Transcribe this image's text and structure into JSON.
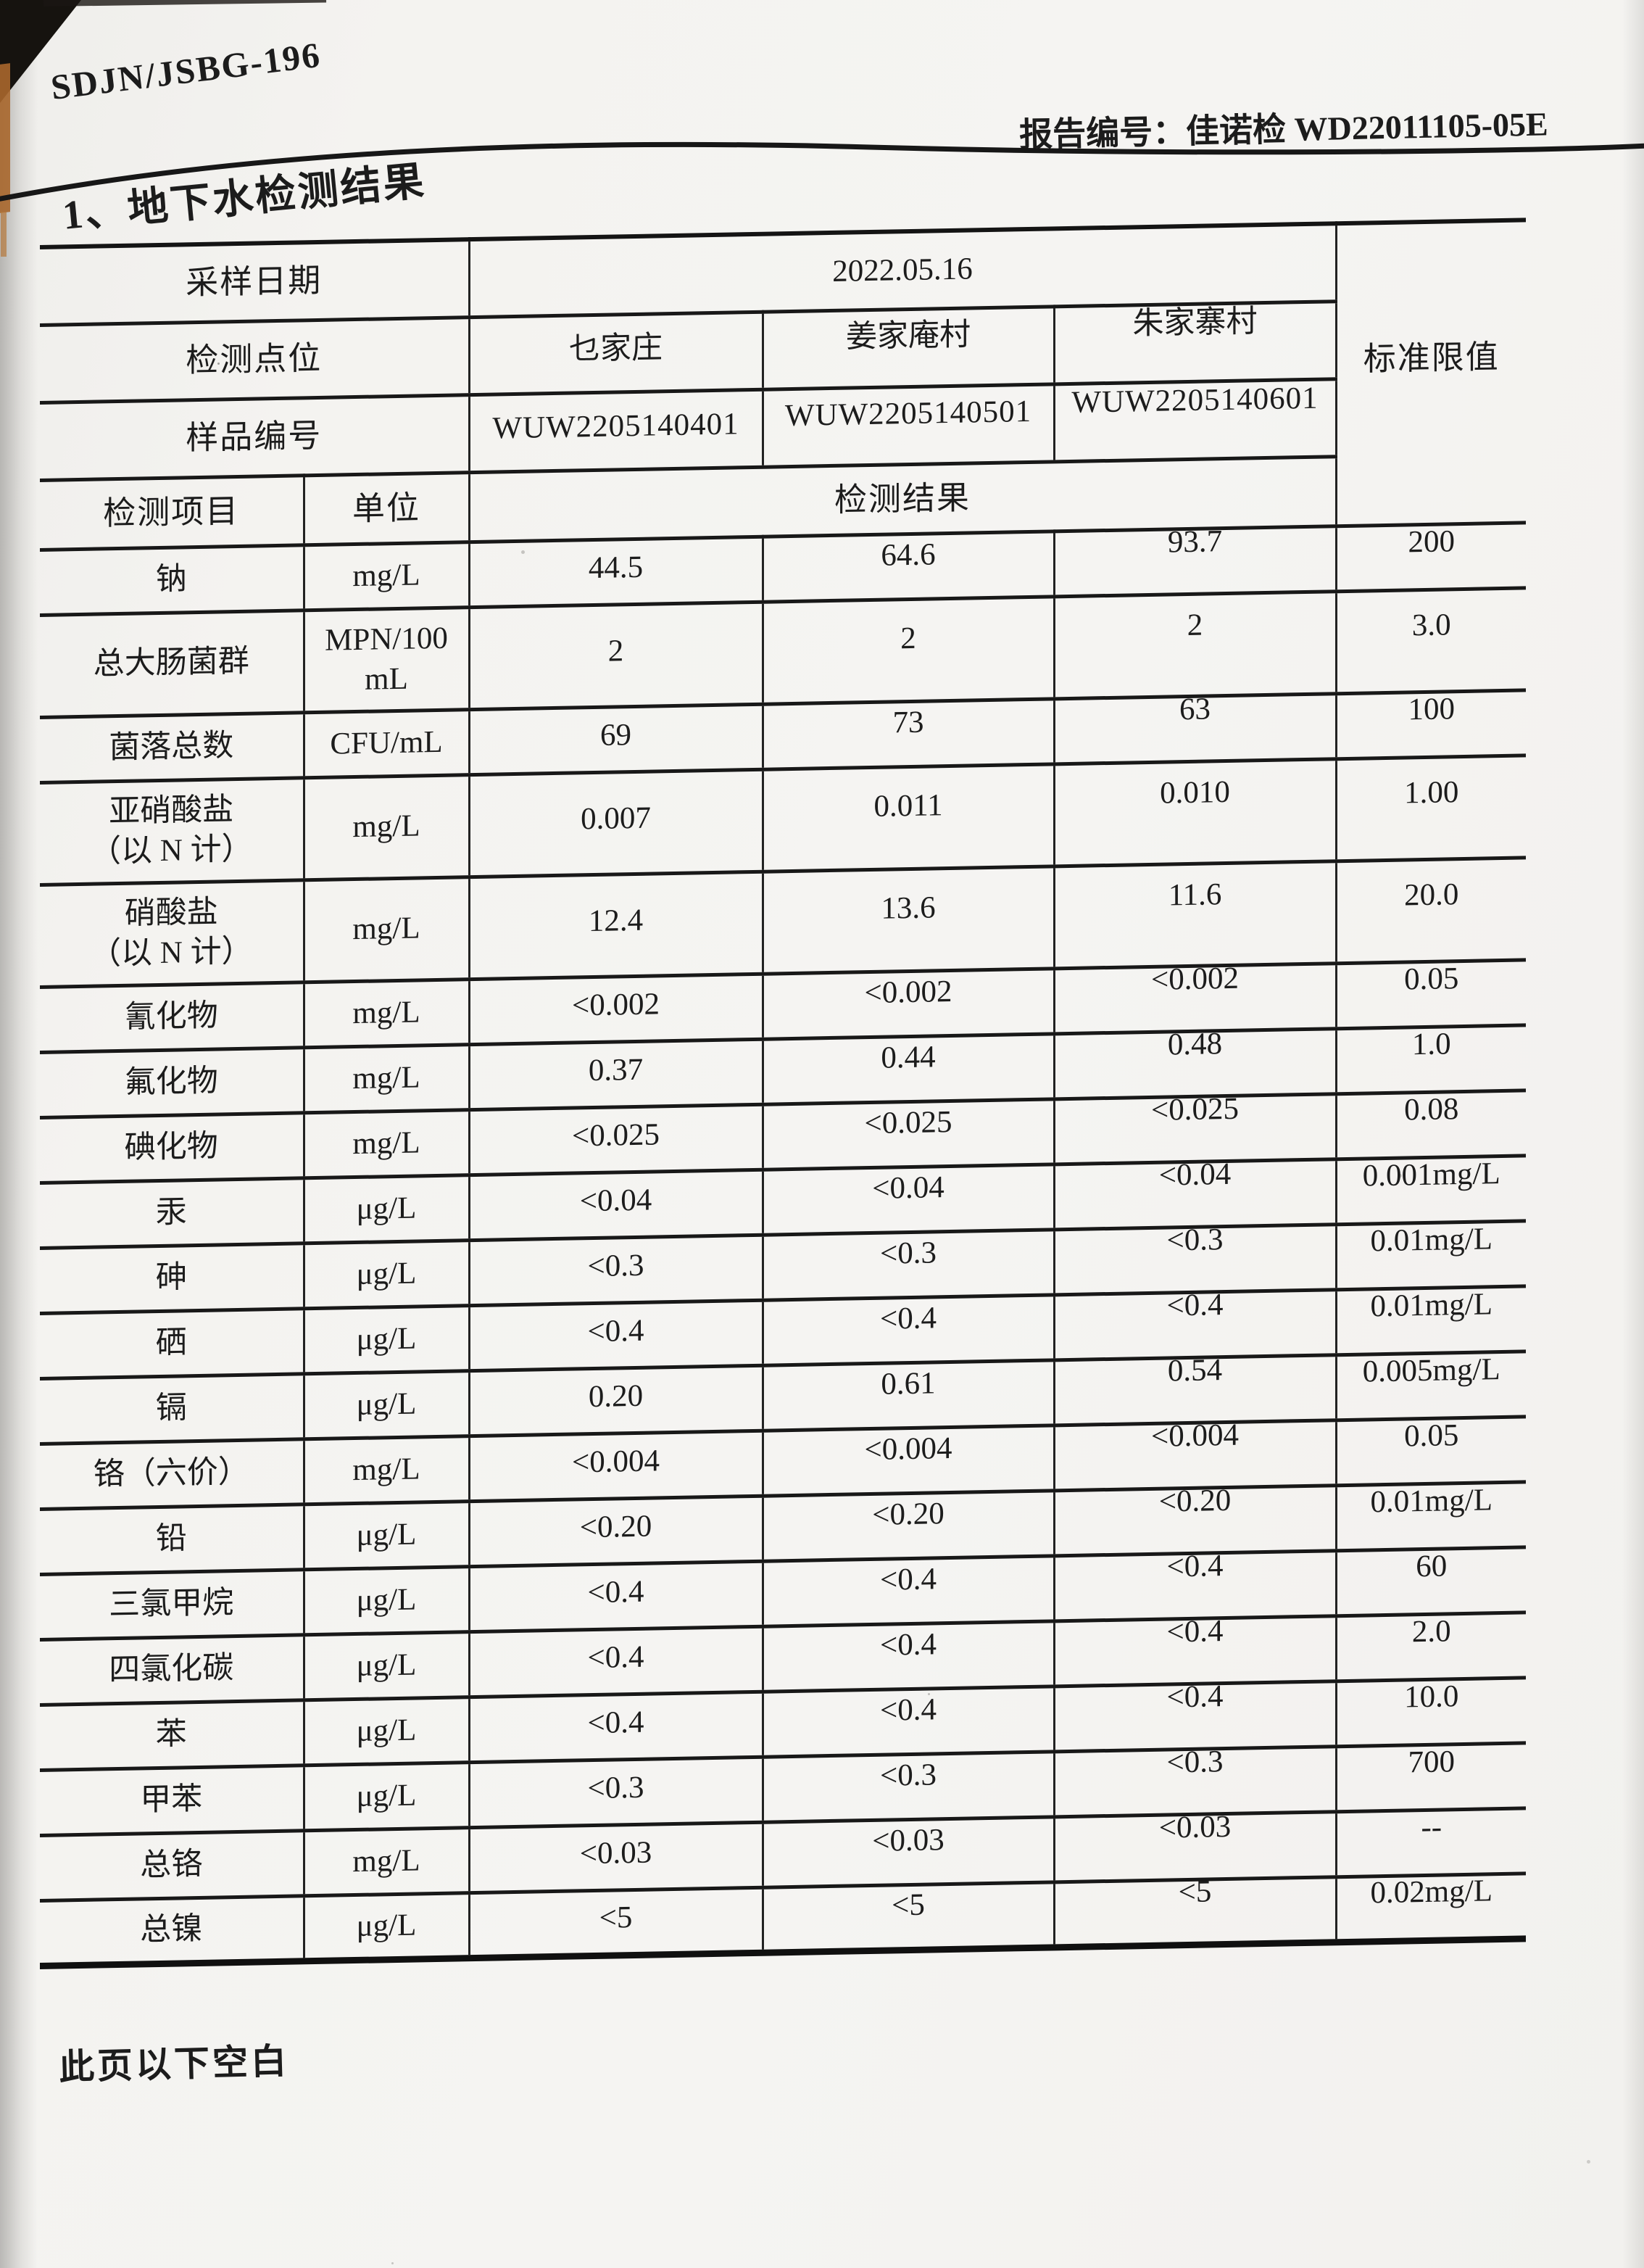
{
  "page": {
    "doc_code": "SDJN/JSBG-196",
    "report_no": "报告编号：佳诺检 WD22011105-05E",
    "section_title": "1、地下水检测结果",
    "footer_note": "此页以下空白",
    "colors": {
      "ink": "#1c1c1c",
      "paper": "#f4f3f0",
      "scan_edge_accent": "#a8672c"
    }
  },
  "table": {
    "header": {
      "sampling_date_label": "采样日期",
      "sampling_date": "2022.05.16",
      "site_label": "检测点位",
      "sites": [
        "乜家庄",
        "姜家庵村",
        "朱家寨村"
      ],
      "sample_no_label": "样品编号",
      "sample_nos": [
        "WUW2205140401",
        "WUW2205140501",
        "WUW2205140601"
      ],
      "item_label": "检测项目",
      "unit_label": "单位",
      "result_label": "检测结果",
      "limit_label": "标准限值"
    },
    "rows": [
      {
        "item": "钠",
        "item2": "",
        "unit": "mg/L",
        "unit2": "",
        "values": [
          "44.5",
          "64.6",
          "93.7"
        ],
        "limit": "200"
      },
      {
        "item": "总大肠菌群",
        "item2": "",
        "unit": "MPN/100",
        "unit2": "mL",
        "values": [
          "2",
          "2",
          "2"
        ],
        "limit": "3.0"
      },
      {
        "item": "菌落总数",
        "item2": "",
        "unit": "CFU/mL",
        "unit2": "",
        "values": [
          "69",
          "73",
          "63"
        ],
        "limit": "100"
      },
      {
        "item": "亚硝酸盐",
        "item2": "（以 N 计）",
        "unit": "mg/L",
        "unit2": "",
        "values": [
          "0.007",
          "0.011",
          "0.010"
        ],
        "limit": "1.00"
      },
      {
        "item": "硝酸盐",
        "item2": "（以 N 计）",
        "unit": "mg/L",
        "unit2": "",
        "values": [
          "12.4",
          "13.6",
          "11.6"
        ],
        "limit": "20.0"
      },
      {
        "item": "氰化物",
        "item2": "",
        "unit": "mg/L",
        "unit2": "",
        "values": [
          "<0.002",
          "<0.002",
          "<0.002"
        ],
        "limit": "0.05"
      },
      {
        "item": "氟化物",
        "item2": "",
        "unit": "mg/L",
        "unit2": "",
        "values": [
          "0.37",
          "0.44",
          "0.48"
        ],
        "limit": "1.0"
      },
      {
        "item": "碘化物",
        "item2": "",
        "unit": "mg/L",
        "unit2": "",
        "values": [
          "<0.025",
          "<0.025",
          "<0.025"
        ],
        "limit": "0.08"
      },
      {
        "item": "汞",
        "item2": "",
        "unit": "μg/L",
        "unit2": "",
        "values": [
          "<0.04",
          "<0.04",
          "<0.04"
        ],
        "limit": "0.001mg/L"
      },
      {
        "item": "砷",
        "item2": "",
        "unit": "μg/L",
        "unit2": "",
        "values": [
          "<0.3",
          "<0.3",
          "<0.3"
        ],
        "limit": "0.01mg/L"
      },
      {
        "item": "硒",
        "item2": "",
        "unit": "μg/L",
        "unit2": "",
        "values": [
          "<0.4",
          "<0.4",
          "<0.4"
        ],
        "limit": "0.01mg/L"
      },
      {
        "item": "镉",
        "item2": "",
        "unit": "μg/L",
        "unit2": "",
        "values": [
          "0.20",
          "0.61",
          "0.54"
        ],
        "limit": "0.005mg/L"
      },
      {
        "item": "铬（六价）",
        "item2": "",
        "unit": "mg/L",
        "unit2": "",
        "values": [
          "<0.004",
          "<0.004",
          "<0.004"
        ],
        "limit": "0.05"
      },
      {
        "item": "铅",
        "item2": "",
        "unit": "μg/L",
        "unit2": "",
        "values": [
          "<0.20",
          "<0.20",
          "<0.20"
        ],
        "limit": "0.01mg/L"
      },
      {
        "item": "三氯甲烷",
        "item2": "",
        "unit": "μg/L",
        "unit2": "",
        "values": [
          "<0.4",
          "<0.4",
          "<0.4"
        ],
        "limit": "60"
      },
      {
        "item": "四氯化碳",
        "item2": "",
        "unit": "μg/L",
        "unit2": "",
        "values": [
          "<0.4",
          "<0.4",
          "<0.4"
        ],
        "limit": "2.0"
      },
      {
        "item": "苯",
        "item2": "",
        "unit": "μg/L",
        "unit2": "",
        "values": [
          "<0.4",
          "<0.4",
          "<0.4"
        ],
        "limit": "10.0"
      },
      {
        "item": "甲苯",
        "item2": "",
        "unit": "μg/L",
        "unit2": "",
        "values": [
          "<0.3",
          "<0.3",
          "<0.3"
        ],
        "limit": "700"
      },
      {
        "item": "总铬",
        "item2": "",
        "unit": "mg/L",
        "unit2": "",
        "values": [
          "<0.03",
          "<0.03",
          "<0.03"
        ],
        "limit": "--"
      },
      {
        "item": "总镍",
        "item2": "",
        "unit": "μg/L",
        "unit2": "",
        "values": [
          "<5",
          "<5",
          "<5"
        ],
        "limit": "0.02mg/L"
      }
    ]
  }
}
